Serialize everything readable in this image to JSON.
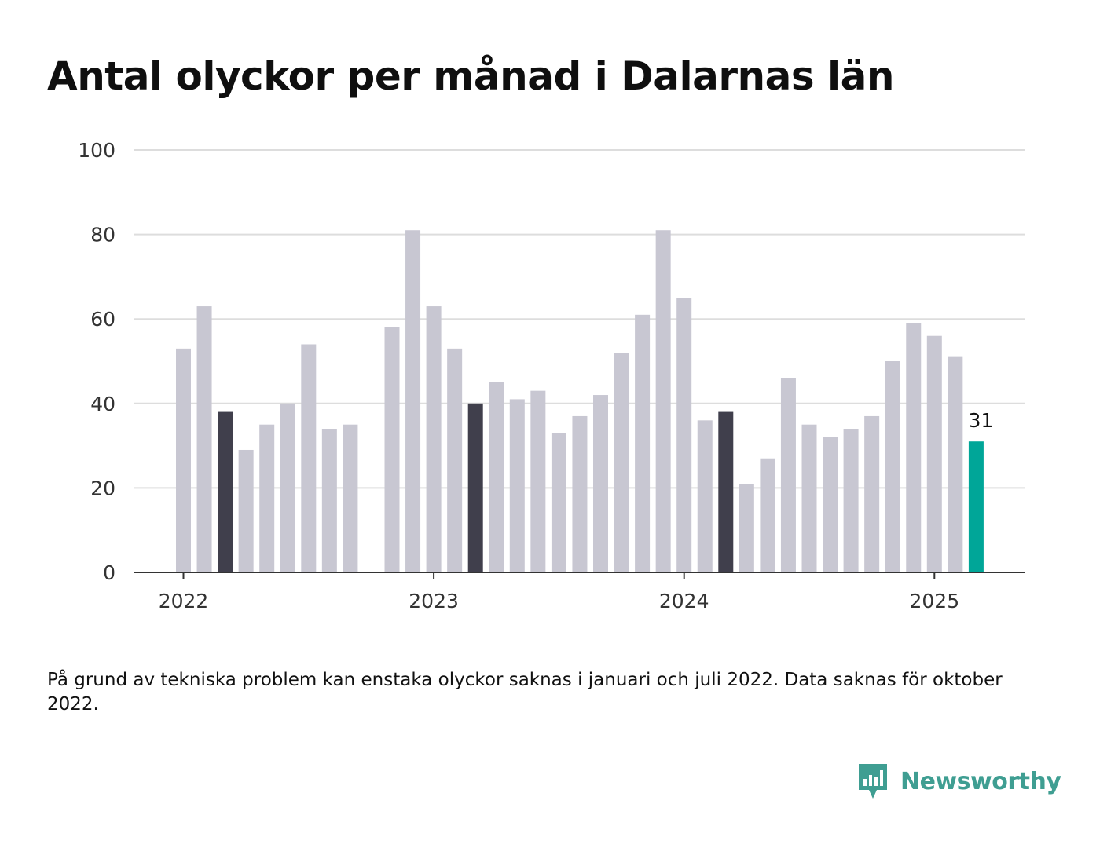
{
  "title": "Antal olyckor per månad i Dalarnas län",
  "note": "På grund av tekniska problem kan enstaka olyckor saknas i januari och juli 2022. Data saknas för oktober 2022.",
  "brand": {
    "name": "Newsworthy",
    "icon": "newsworthy-logo-icon",
    "color": "#3f9e92"
  },
  "colors": {
    "bar": "#c8c7d2",
    "highlight": "#403f4c",
    "latest": "#00a698",
    "grid": "#dddddd",
    "axis": "#333333"
  },
  "chart_data": {
    "type": "bar",
    "x": [
      "2022-01",
      "2022-02",
      "2022-03",
      "2022-04",
      "2022-05",
      "2022-06",
      "2022-07",
      "2022-08",
      "2022-09",
      "2022-10",
      "2022-11",
      "2022-12",
      "2023-01",
      "2023-02",
      "2023-03",
      "2023-04",
      "2023-05",
      "2023-06",
      "2023-07",
      "2023-08",
      "2023-09",
      "2023-10",
      "2023-11",
      "2023-12",
      "2024-01",
      "2024-02",
      "2024-03",
      "2024-04",
      "2024-05",
      "2024-06",
      "2024-07",
      "2024-08",
      "2024-09",
      "2024-10",
      "2024-11",
      "2024-12",
      "2025-01",
      "2025-02",
      "2025-03"
    ],
    "values": [
      53,
      63,
      38,
      29,
      35,
      40,
      54,
      34,
      35,
      null,
      58,
      81,
      63,
      53,
      40,
      45,
      41,
      43,
      33,
      37,
      42,
      52,
      61,
      81,
      65,
      36,
      38,
      21,
      27,
      46,
      35,
      32,
      34,
      37,
      50,
      59,
      56,
      51,
      31
    ],
    "highlight": [
      "2022-03",
      "2023-03",
      "2024-03"
    ],
    "latest": "2025-03",
    "latest_label": "31",
    "ylim": [
      0,
      100
    ],
    "yticks": [
      "0",
      "20",
      "40",
      "60",
      "80",
      "100"
    ],
    "xticks": [
      {
        "label": "2022",
        "at": "2022-01"
      },
      {
        "label": "2023",
        "at": "2023-01"
      },
      {
        "label": "2024",
        "at": "2024-01"
      },
      {
        "label": "2025",
        "at": "2025-01"
      }
    ],
    "grid": true,
    "xlabel": "",
    "ylabel": ""
  }
}
